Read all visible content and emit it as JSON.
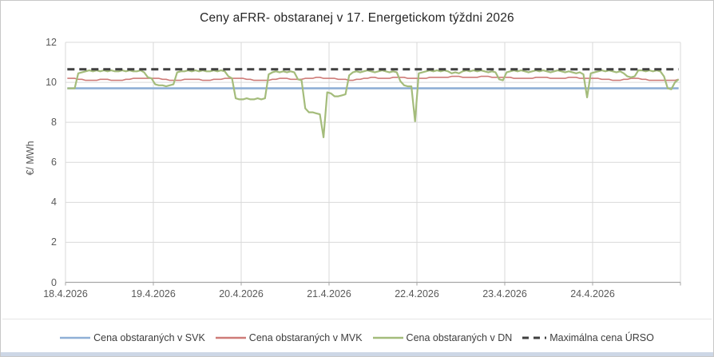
{
  "window": {
    "bottom_bar_color": "#cdd7e6",
    "border_color": "#c8c8c8",
    "background": "#ffffff"
  },
  "chart_data": {
    "type": "line",
    "title": "Ceny aFRR- obstaranej v 17. Energetickom týždni 2026",
    "ylabel": "€/ MWh",
    "xlabel": "",
    "ylim": [
      0,
      12
    ],
    "yticks": [
      0,
      2,
      4,
      6,
      8,
      10,
      12
    ],
    "x_categories": [
      "18.4.2026",
      "19.4.2026",
      "20.4.2026",
      "21.4.2026",
      "22.4.2026",
      "23.4.2026",
      "24.4.2026"
    ],
    "x_resolution": "hourly",
    "points_per_day": 24,
    "grid": "on",
    "legend_position": "bottom",
    "colors": {
      "grid": "#d9d9d9",
      "axis": "#a6a6a6",
      "tick_text": "#595959",
      "title_text": "#262626",
      "legend_text": "#3d3d3d"
    },
    "series": [
      {
        "name": "Cena obstaraných v SVK",
        "color": "#8fafd6",
        "style": "solid",
        "constant": 9.7
      },
      {
        "name": "Cena obstaraných v MVK",
        "color": "#ce7b78",
        "style": "solid",
        "values": [
          10.2,
          10.2,
          10.2,
          10.15,
          10.15,
          10.1,
          10.1,
          10.1,
          10.1,
          10.15,
          10.15,
          10.15,
          10.1,
          10.1,
          10.1,
          10.1,
          10.15,
          10.15,
          10.2,
          10.2,
          10.2,
          10.2,
          10.2,
          10.2,
          10.2,
          10.2,
          10.15,
          10.15,
          10.1,
          10.1,
          10.1,
          10.1,
          10.15,
          10.15,
          10.15,
          10.15,
          10.15,
          10.1,
          10.1,
          10.1,
          10.15,
          10.15,
          10.15,
          10.2,
          10.2,
          10.2,
          10.2,
          10.2,
          10.2,
          10.15,
          10.15,
          10.1,
          10.1,
          10.1,
          10.1,
          10.1,
          10.15,
          10.15,
          10.2,
          10.2,
          10.2,
          10.15,
          10.15,
          10.15,
          10.15,
          10.2,
          10.2,
          10.2,
          10.25,
          10.25,
          10.2,
          10.2,
          10.2,
          10.2,
          10.15,
          10.15,
          10.15,
          10.1,
          10.1,
          10.15,
          10.15,
          10.2,
          10.2,
          10.25,
          10.25,
          10.2,
          10.2,
          10.2,
          10.2,
          10.25,
          10.25,
          10.25,
          10.25,
          10.2,
          10.2,
          10.2,
          10.2,
          10.2,
          10.2,
          10.25,
          10.25,
          10.25,
          10.25,
          10.25,
          10.25,
          10.3,
          10.3,
          10.3,
          10.25,
          10.25,
          10.25,
          10.25,
          10.25,
          10.3,
          10.3,
          10.3,
          10.25,
          10.25,
          10.25,
          10.25,
          10.25,
          10.25,
          10.2,
          10.2,
          10.2,
          10.2,
          10.2,
          10.2,
          10.25,
          10.25,
          10.25,
          10.25,
          10.2,
          10.2,
          10.2,
          10.2,
          10.2,
          10.25,
          10.25,
          10.25,
          10.2,
          10.2,
          10.2,
          10.2,
          10.2,
          10.2,
          10.15,
          10.15,
          10.15,
          10.1,
          10.1,
          10.1,
          10.15,
          10.15,
          10.2,
          10.2,
          10.2,
          10.15,
          10.15,
          10.1,
          10.1,
          10.1,
          10.1,
          10.1,
          10.1,
          10.1,
          10.1,
          10.15
        ]
      },
      {
        "name": "Cena obstaraných v DN",
        "color": "#a4bc7b",
        "style": "solid",
        "values": [
          9.7,
          9.7,
          9.7,
          10.45,
          10.5,
          10.55,
          10.6,
          10.55,
          10.6,
          10.55,
          10.6,
          10.55,
          10.6,
          10.55,
          10.55,
          10.6,
          10.55,
          10.6,
          10.55,
          10.55,
          10.6,
          10.5,
          10.25,
          10.2,
          9.9,
          9.85,
          9.85,
          9.8,
          9.85,
          9.9,
          10.5,
          10.55,
          10.55,
          10.6,
          10.55,
          10.6,
          10.55,
          10.6,
          10.55,
          10.55,
          10.6,
          10.55,
          10.6,
          10.55,
          10.3,
          10.2,
          9.2,
          9.15,
          9.15,
          9.2,
          9.15,
          9.15,
          9.2,
          9.15,
          9.2,
          10.4,
          10.5,
          10.55,
          10.5,
          10.55,
          10.5,
          10.55,
          10.5,
          10.15,
          10.1,
          8.7,
          8.5,
          8.5,
          8.45,
          8.4,
          7.25,
          9.5,
          9.45,
          9.3,
          9.3,
          9.35,
          9.4,
          10.35,
          10.5,
          10.55,
          10.5,
          10.55,
          10.6,
          10.55,
          10.5,
          10.55,
          10.6,
          10.55,
          10.5,
          10.55,
          10.5,
          10.05,
          9.85,
          9.8,
          9.8,
          8.05,
          10.45,
          10.5,
          10.55,
          10.6,
          10.55,
          10.6,
          10.55,
          10.6,
          10.55,
          10.45,
          10.5,
          10.45,
          10.55,
          10.6,
          10.55,
          10.6,
          10.55,
          10.6,
          10.55,
          10.5,
          10.55,
          10.5,
          10.15,
          10.1,
          10.5,
          10.55,
          10.6,
          10.55,
          10.6,
          10.55,
          10.5,
          10.55,
          10.6,
          10.55,
          10.6,
          10.55,
          10.5,
          10.55,
          10.6,
          10.55,
          10.5,
          10.55,
          10.5,
          10.45,
          10.5,
          10.4,
          9.25,
          10.45,
          10.5,
          10.55,
          10.6,
          10.55,
          10.6,
          10.55,
          10.5,
          10.55,
          10.45,
          10.3,
          10.25,
          10.3,
          10.6,
          10.6,
          10.55,
          10.6,
          10.55,
          10.6,
          10.55,
          10.3,
          9.7,
          9.65,
          10.0,
          10.15
        ]
      },
      {
        "name": "Maximálna cena ÚRSO",
        "color": "#3f3f3f",
        "style": "dashed",
        "constant": 10.65
      }
    ]
  }
}
